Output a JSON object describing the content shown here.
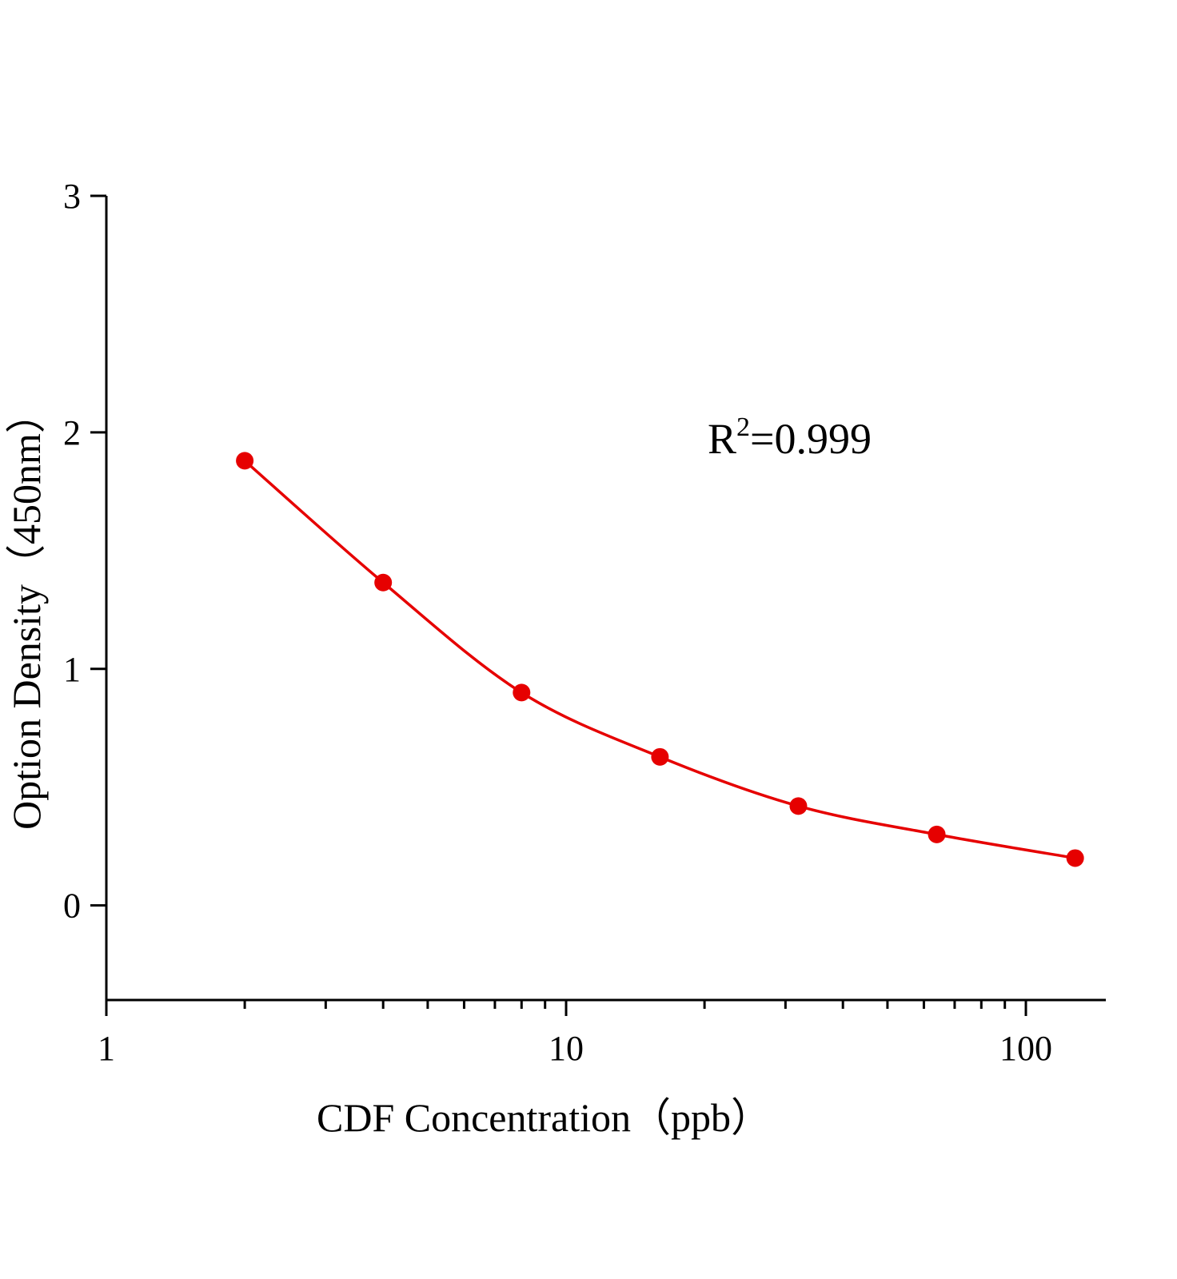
{
  "chart_data": {
    "type": "scatter",
    "title": "",
    "xlabel": "CDF Concentration（ppb）",
    "ylabel": "Option Density（450nm）",
    "xscale": "log",
    "xlim": [
      1,
      150
    ],
    "ylim": [
      -0.4,
      3
    ],
    "xticks": [
      "1",
      "10",
      "100"
    ],
    "yticks": [
      "0",
      "1",
      "2",
      "3"
    ],
    "grid": false,
    "annotation": {
      "base": "R",
      "sup": "2",
      "rest": "=0.999"
    },
    "series": [
      {
        "x": [
          2,
          4,
          8,
          16,
          32,
          64,
          128
        ],
        "y": [
          1.88,
          1.365,
          0.9,
          0.628,
          0.42,
          0.3,
          0.2
        ],
        "color": "#e60000",
        "fit_curve": true
      }
    ]
  }
}
